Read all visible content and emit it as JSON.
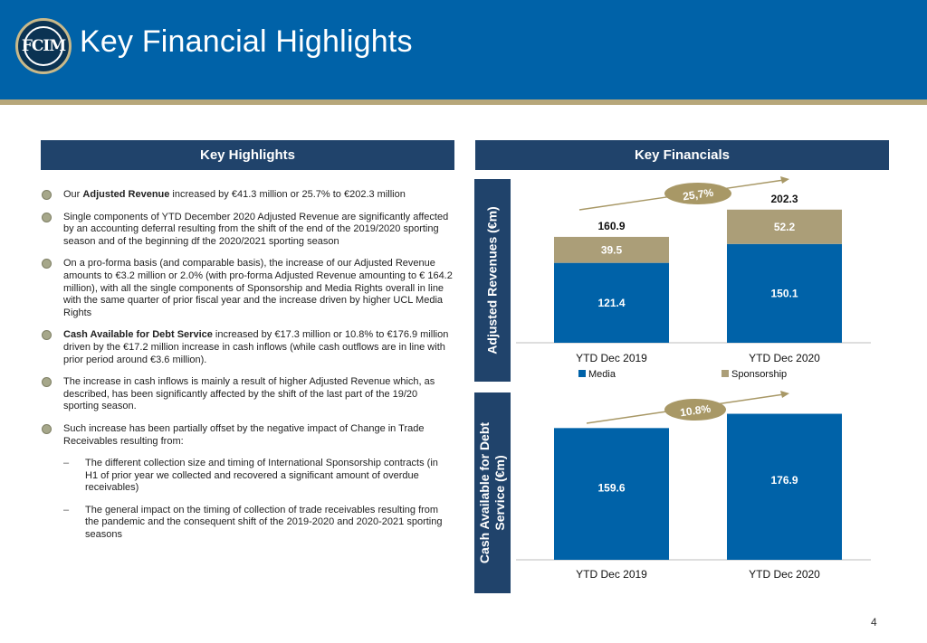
{
  "header": {
    "title": "Key Financial Highlights",
    "logo_text": "FCIM"
  },
  "left": {
    "section_title": "Key Highlights",
    "items": [
      {
        "pre": "Our ",
        "bold": "Adjusted Revenue",
        "post": " increased by €41.3 million or 25.7% to €202.3 million"
      },
      {
        "pre": "Single components of YTD December 2020 Adjusted Revenue are significantly affected by an accounting deferral resulting from the shift of the end of the 2019/2020 sporting season and of the beginning df the 2020/2021 sporting season",
        "bold": "",
        "post": ""
      },
      {
        "pre": "On a pro-forma basis (and comparable basis), the increase of our Adjusted Revenue amounts to €3.2 million or 2.0% (with pro-forma Adjusted Revenue amounting to € 164.2 million), with all the single components of Sponsorship and Media Rights overall in line with the same quarter of prior fiscal year  and the increase driven by higher UCL Media Rights",
        "bold": "",
        "post": ""
      },
      {
        "pre": "",
        "bold": "Cash Available for Debt Service",
        "post": " increased by €17.3 million or 10.8% to €176.9 million  driven by the €17.2 million increase in cash inflows (while cash outflows are in line with prior period around €3.6 million)."
      },
      {
        "pre": "The increase in cash inflows is mainly a result of higher Adjusted Revenue which, as described, has been significantly affected by the shift of the last part of the 19/20 sporting season.",
        "bold": "",
        "post": ""
      },
      {
        "pre": "Such increase has been partially offset by the negative impact of Change in Trade Receivables resulting from:",
        "bold": "",
        "post": ""
      }
    ],
    "sub_items": [
      "The different collection size and timing of International Sponsorship contracts (in H1 of prior year we collected and recovered a significant amount of overdue receivables)",
      "The general impact on the timing of collection of trade receivables resulting from the pandemic and the consequent shift of the 2019-2020 and 2020-2021 sporting seasons"
    ],
    "dash": "–"
  },
  "right": {
    "section_title": "Key Financials"
  },
  "colors": {
    "media": "#0062a8",
    "sponsorship": "#ab9e78",
    "navy": "#20436b",
    "arrow": "#a89866",
    "badge": "#a89866"
  },
  "chart_data": [
    {
      "type": "bar",
      "stacked": true,
      "ylabel": "Adjusted Revenues (€m)",
      "categories": [
        "YTD Dec 2019",
        "YTD Dec 2020"
      ],
      "series": [
        {
          "name": "Media",
          "values": [
            121.4,
            150.1
          ]
        },
        {
          "name": "Sponsorship",
          "values": [
            39.5,
            52.2
          ]
        }
      ],
      "totals": [
        160.9,
        202.3
      ],
      "value_labels": {
        "Media": [
          "121.4",
          "150.1"
        ],
        "Sponsorship": [
          "39.5",
          "52.2"
        ],
        "totals": [
          "160.9",
          "202.3"
        ]
      },
      "growth_label": "25,7%",
      "legend": "bottom",
      "grid": false
    },
    {
      "type": "bar",
      "ylabel": "Cash Available for Debt Service (€m)",
      "ylabel_lines": [
        "Cash Available for Debt",
        "Service (€m)"
      ],
      "categories": [
        "YTD Dec 2019",
        "YTD Dec 2020"
      ],
      "values": [
        159.6,
        176.9
      ],
      "value_labels": [
        "159.6",
        "176.9"
      ],
      "growth_label": "10.8%",
      "grid": false
    }
  ],
  "page_number": "4"
}
